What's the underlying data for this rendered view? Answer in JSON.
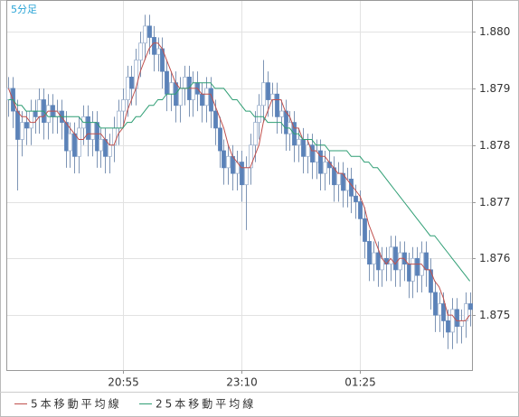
{
  "chart_data": {
    "type": "candlestick",
    "title": "5分足",
    "open": [
      1.8788,
      1.879,
      1.8786,
      1.8781,
      1.8784,
      1.8783,
      1.8786,
      1.8785,
      1.8788,
      1.8784,
      1.8787,
      1.8785,
      1.8786,
      1.8784,
      1.8779,
      1.8782,
      1.8778,
      1.8783,
      1.8785,
      1.8781,
      1.8784,
      1.8779,
      1.8781,
      1.8778,
      1.878,
      1.8783,
      1.8786,
      1.8788,
      1.8792,
      1.879,
      1.8795,
      1.8798,
      1.8801,
      1.8799,
      1.8796,
      1.8797,
      1.8793,
      1.8789,
      1.8791,
      1.8787,
      1.879,
      1.8792,
      1.8788,
      1.8791,
      1.8789,
      1.8787,
      1.879,
      1.8786,
      1.8783,
      1.8779,
      1.8776,
      1.8778,
      1.8775,
      1.8777,
      1.8773,
      1.8776,
      1.878,
      1.8784,
      1.8787,
      1.8791,
      1.8788,
      1.8789,
      1.8785,
      1.8786,
      1.8782,
      1.8784,
      1.878,
      1.8781,
      1.8778,
      1.878,
      1.8777,
      1.8779,
      1.8775,
      1.8777,
      1.8776,
      1.8773,
      1.8775,
      1.8772,
      1.8774,
      1.8771,
      1.877,
      1.8767,
      1.8763,
      1.8759,
      1.8761,
      1.8758,
      1.876,
      1.8759,
      1.8762,
      1.8758,
      1.8761,
      1.8759,
      1.8756,
      1.876,
      1.8757,
      1.8761,
      1.8758,
      1.8754,
      1.875,
      1.8752,
      1.8749,
      1.8747,
      1.8751,
      1.8748,
      1.8749,
      1.8752
    ],
    "high": [
      1.8792,
      1.8792,
      1.8788,
      1.8786,
      1.8786,
      1.8788,
      1.8788,
      1.879,
      1.879,
      1.8789,
      1.8789,
      1.8788,
      1.8788,
      1.8786,
      1.8784,
      1.8784,
      1.8785,
      1.8787,
      1.8787,
      1.8786,
      1.8786,
      1.8783,
      1.8783,
      1.8782,
      1.8785,
      1.8788,
      1.879,
      1.8794,
      1.8794,
      1.8797,
      1.88,
      1.8803,
      1.8803,
      1.8801,
      1.8799,
      1.8799,
      1.8795,
      1.8793,
      1.8793,
      1.8792,
      1.8794,
      1.8794,
      1.8793,
      1.8793,
      1.8791,
      1.8792,
      1.8792,
      1.8788,
      1.8785,
      1.8781,
      1.878,
      1.878,
      1.8779,
      1.8779,
      1.8778,
      1.8782,
      1.8786,
      1.8789,
      1.8795,
      1.8793,
      1.8791,
      1.8791,
      1.8788,
      1.8788,
      1.8786,
      1.8786,
      1.8783,
      1.8783,
      1.8782,
      1.8782,
      1.8781,
      1.8781,
      1.8779,
      1.8779,
      1.8778,
      1.8777,
      1.8777,
      1.8776,
      1.8776,
      1.8773,
      1.8772,
      1.8769,
      1.8765,
      1.8763,
      1.8763,
      1.8762,
      1.8762,
      1.8764,
      1.8764,
      1.8763,
      1.8763,
      1.8761,
      1.8762,
      1.8762,
      1.8763,
      1.8763,
      1.876,
      1.8756,
      1.8754,
      1.8754,
      1.8751,
      1.8753,
      1.8753,
      1.8751,
      1.8754,
      1.8754
    ],
    "low": [
      1.8785,
      1.8783,
      1.8772,
      1.8778,
      1.878,
      1.878,
      1.8782,
      1.8782,
      1.8781,
      1.8781,
      1.8782,
      1.8782,
      1.8781,
      1.8776,
      1.8776,
      1.8775,
      1.8775,
      1.878,
      1.8778,
      1.8778,
      1.8776,
      1.8776,
      1.8775,
      1.8775,
      1.8777,
      1.878,
      1.8783,
      1.8785,
      1.8787,
      1.8787,
      1.8792,
      1.8795,
      1.8796,
      1.8793,
      1.8793,
      1.879,
      1.8786,
      1.8786,
      1.8784,
      1.8784,
      1.8787,
      1.8785,
      1.8785,
      1.8786,
      1.8784,
      1.8784,
      1.8783,
      1.878,
      1.8776,
      1.8773,
      1.8773,
      1.8772,
      1.8772,
      1.877,
      1.8765,
      1.8773,
      1.8777,
      1.8781,
      1.8784,
      1.8785,
      1.8785,
      1.8782,
      1.8782,
      1.8779,
      1.8779,
      1.8777,
      1.8777,
      1.8775,
      1.8775,
      1.8774,
      1.8774,
      1.8772,
      1.8772,
      1.8773,
      1.877,
      1.877,
      1.8769,
      1.8769,
      1.8768,
      1.8767,
      1.8764,
      1.876,
      1.8756,
      1.8756,
      1.8755,
      1.8755,
      1.8756,
      1.8756,
      1.8755,
      1.8755,
      1.8756,
      1.8753,
      1.8753,
      1.8754,
      1.8754,
      1.8755,
      1.8751,
      1.8747,
      1.8747,
      1.8746,
      1.8744,
      1.8744,
      1.8745,
      1.8745,
      1.8746,
      1.8748
    ],
    "close": [
      1.879,
      1.8786,
      1.8781,
      1.8784,
      1.8783,
      1.8786,
      1.8785,
      1.8788,
      1.8784,
      1.8787,
      1.8785,
      1.8786,
      1.8784,
      1.8779,
      1.8782,
      1.8778,
      1.8783,
      1.8785,
      1.8781,
      1.8784,
      1.8779,
      1.8781,
      1.8778,
      1.878,
      1.8783,
      1.8786,
      1.8788,
      1.8792,
      1.879,
      1.8795,
      1.8798,
      1.8801,
      1.8799,
      1.8796,
      1.8797,
      1.8793,
      1.8789,
      1.8791,
      1.8787,
      1.879,
      1.8792,
      1.8788,
      1.8791,
      1.8789,
      1.8787,
      1.879,
      1.8786,
      1.8783,
      1.8779,
      1.8776,
      1.8778,
      1.8775,
      1.8777,
      1.8773,
      1.8776,
      1.878,
      1.8784,
      1.8787,
      1.8791,
      1.8788,
      1.8789,
      1.8785,
      1.8786,
      1.8782,
      1.8784,
      1.878,
      1.8781,
      1.8778,
      1.878,
      1.8777,
      1.8779,
      1.8775,
      1.8777,
      1.8776,
      1.8773,
      1.8775,
      1.8772,
      1.8774,
      1.8771,
      1.877,
      1.8767,
      1.8763,
      1.8759,
      1.8761,
      1.8758,
      1.876,
      1.8759,
      1.8762,
      1.8758,
      1.8761,
      1.8759,
      1.8756,
      1.876,
      1.8757,
      1.8761,
      1.8758,
      1.8754,
      1.875,
      1.8752,
      1.8749,
      1.8747,
      1.8751,
      1.8748,
      1.8749,
      1.8752,
      1.8751
    ],
    "up_color": "#ffffff",
    "down_color": "#5b82b8",
    "wick_color": "#7e95b5",
    "series": [
      {
        "name": "5本移動平均線",
        "color": "#c0504d",
        "values": [
          1.879,
          1.8788,
          1.8786,
          1.8785,
          1.8785,
          1.8784,
          1.8784,
          1.8785,
          1.8785,
          1.8786,
          1.8786,
          1.8786,
          1.8785,
          1.8784,
          1.8783,
          1.8782,
          1.8781,
          1.8781,
          1.8782,
          1.8782,
          1.8782,
          1.8782,
          1.8781,
          1.878,
          1.878,
          1.8782,
          1.8783,
          1.8786,
          1.8788,
          1.879,
          1.8793,
          1.8795,
          1.8797,
          1.8798,
          1.8798,
          1.8797,
          1.8795,
          1.8793,
          1.8791,
          1.879,
          1.879,
          1.879,
          1.879,
          1.879,
          1.8789,
          1.8789,
          1.8789,
          1.8787,
          1.8785,
          1.8783,
          1.878,
          1.8778,
          1.8777,
          1.8776,
          1.8776,
          1.8776,
          1.8778,
          1.878,
          1.8784,
          1.8786,
          1.8788,
          1.8788,
          1.8788,
          1.8786,
          1.8785,
          1.8783,
          1.8783,
          1.8781,
          1.8781,
          1.8779,
          1.8779,
          1.8778,
          1.8778,
          1.8777,
          1.8776,
          1.8775,
          1.8775,
          1.8774,
          1.8773,
          1.8772,
          1.8771,
          1.8769,
          1.8766,
          1.8764,
          1.8762,
          1.876,
          1.8759,
          1.876,
          1.8759,
          1.876,
          1.876,
          1.8759,
          1.8759,
          1.8759,
          1.8759,
          1.8758,
          1.8758,
          1.8756,
          1.8755,
          1.8753,
          1.875,
          1.875,
          1.8749,
          1.8749,
          1.8749,
          1.875
        ]
      },
      {
        "name": "25本移動平均線",
        "color": "#2f9e74",
        "values": [
          1.8788,
          1.8788,
          1.8787,
          1.8787,
          1.8786,
          1.8786,
          1.8786,
          1.8786,
          1.8786,
          1.8785,
          1.8785,
          1.8785,
          1.8785,
          1.8785,
          1.8785,
          1.8785,
          1.8785,
          1.8784,
          1.8784,
          1.8784,
          1.8784,
          1.8783,
          1.8783,
          1.8783,
          1.8783,
          1.8783,
          1.8783,
          1.8784,
          1.8784,
          1.8785,
          1.8785,
          1.8786,
          1.8787,
          1.8787,
          1.8788,
          1.8788,
          1.8789,
          1.8789,
          1.8789,
          1.879,
          1.879,
          1.879,
          1.8791,
          1.8791,
          1.8791,
          1.8791,
          1.8791,
          1.879,
          1.879,
          1.879,
          1.8789,
          1.8788,
          1.8788,
          1.8787,
          1.8786,
          1.8786,
          1.8785,
          1.8785,
          1.8785,
          1.8784,
          1.8784,
          1.8784,
          1.8784,
          1.8783,
          1.8783,
          1.8782,
          1.8782,
          1.8781,
          1.8781,
          1.8781,
          1.878,
          1.878,
          1.878,
          1.8779,
          1.8779,
          1.8779,
          1.8779,
          1.8779,
          1.8778,
          1.8778,
          1.8778,
          1.8777,
          1.8777,
          1.8776,
          1.8776,
          1.8775,
          1.8774,
          1.8773,
          1.8772,
          1.8771,
          1.877,
          1.8769,
          1.8768,
          1.8767,
          1.8766,
          1.8765,
          1.8764,
          1.8764,
          1.8763,
          1.8762,
          1.8761,
          1.876,
          1.8759,
          1.8758,
          1.8757,
          1.8756
        ]
      }
    ],
    "xlim": [
      -0.5,
      105.5
    ],
    "xticks": [
      {
        "value": 26,
        "label": "20:55"
      },
      {
        "value": 53,
        "label": "23:10"
      },
      {
        "value": 80,
        "label": "01:25"
      }
    ],
    "ylim": [
      1.87403,
      1.88056
    ],
    "yticks": [
      1.875,
      1.876,
      1.877,
      1.878,
      1.879,
      {
        "value": 1.88,
        "label": "1.880"
      }
    ],
    "grid": true
  }
}
